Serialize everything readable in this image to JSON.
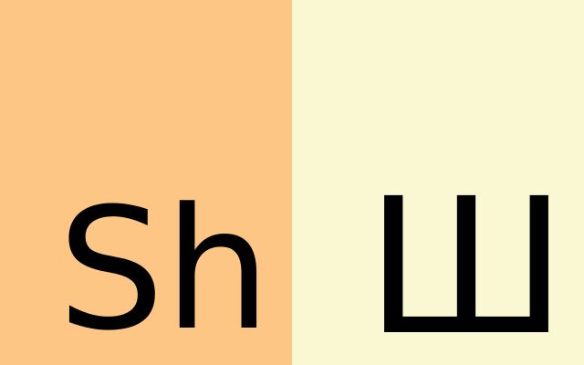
{
  "panels": [
    {
      "text": "Sh",
      "background": "#FDC685"
    },
    {
      "text": "Ш",
      "background": "#FAF8D2"
    }
  ],
  "text_color": "#000000"
}
